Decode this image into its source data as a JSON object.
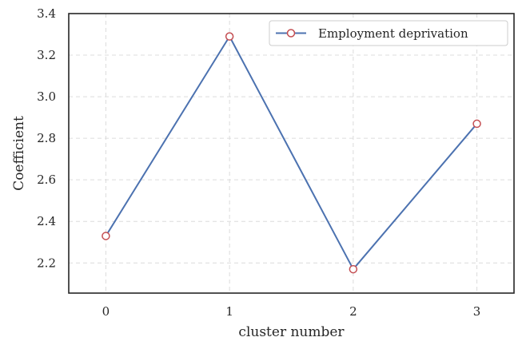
{
  "chart_data": {
    "type": "line",
    "xlabel": "cluster number",
    "ylabel": "Coefficient",
    "x": [
      0,
      1,
      2,
      3
    ],
    "series": [
      {
        "name": "Employment deprivation",
        "values": [
          2.33,
          3.29,
          2.17,
          2.87
        ],
        "line_color": "#4c72b0",
        "marker": "open-circle",
        "marker_edge_color": "#c44e52",
        "marker_face_color": "#ffffff"
      }
    ],
    "xlim": [
      -0.3,
      3.3
    ],
    "ylim": [
      2.055,
      3.4
    ],
    "xticks": [
      0,
      1,
      2,
      3
    ],
    "xtick_labels": [
      "0",
      "1",
      "2",
      "3"
    ],
    "yticks": [
      2.2,
      2.4,
      2.6,
      2.8,
      3.0,
      3.2,
      3.4
    ],
    "ytick_labels": [
      "2.2",
      "2.4",
      "2.6",
      "2.8",
      "3.0",
      "3.2",
      "3.4"
    ],
    "grid": true,
    "legend_position": "top-right"
  }
}
